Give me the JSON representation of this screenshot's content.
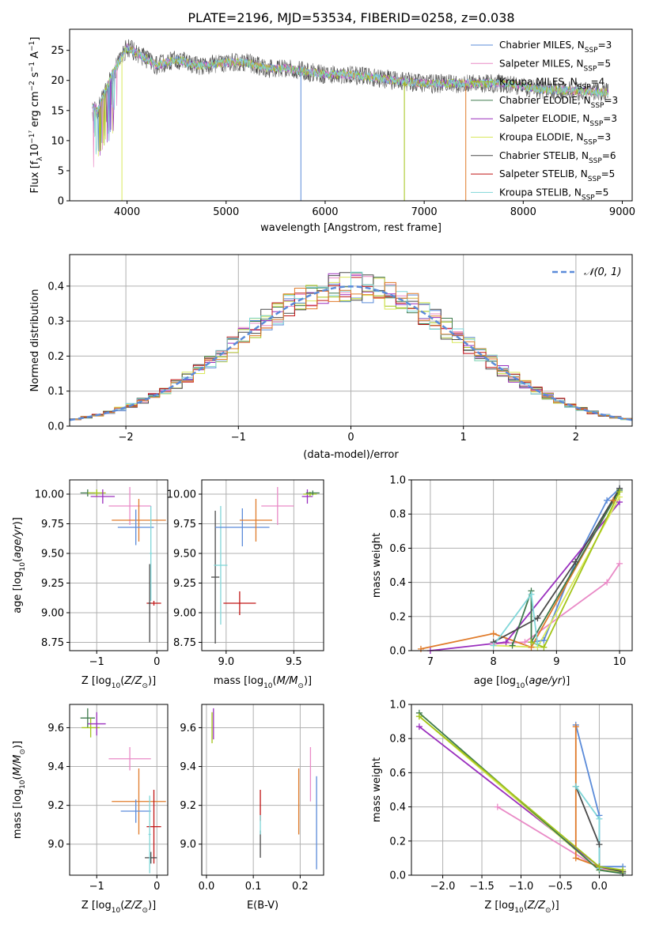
{
  "title": "PLATE=2196, MJD=53534, FIBERID=0258, z=0.038",
  "colors": {
    "Chabrier MILES": "#5b8bd9",
    "Salpeter MILES": "#e98ac6",
    "Kroupa MILES": "#a2c418",
    "Chabrier ELODIE": "#3e7a4c",
    "Salpeter ELODIE": "#9a2fbe",
    "Kroupa ELODIE": "#d9e85a",
    "Chabrier STELIB": "#4a4a4a",
    "Salpeter STELIB": "#c01515",
    "Kroupa STELIB": "#7fd6d8",
    "orange": "#e07b2a",
    "gray": "#888888"
  },
  "chart_data": [
    {
      "type": "line",
      "title": "PLATE=2196, MJD=53534, FIBERID=0258, z=0.038",
      "xlabel": "wavelength [Angstrom, rest frame]",
      "ylabel": "Flux [fλ10⁻¹⁷ erg cm⁻² s⁻¹ A⁻¹]",
      "xlim": [
        3420,
        9100
      ],
      "ylim": [
        0,
        28.5
      ],
      "xticks": [
        "4000",
        "5000",
        "6000",
        "7000",
        "8000",
        "9000"
      ],
      "yticks": [
        "0",
        "5",
        "10",
        "15",
        "20",
        "25"
      ],
      "grid": false,
      "legend_position": "upper-right",
      "spectrum_range": [
        3650,
        8860
      ],
      "continuum_points": [
        [
          3650,
          16
        ],
        [
          3700,
          15
        ],
        [
          3750,
          17
        ],
        [
          3800,
          19
        ],
        [
          3850,
          21
        ],
        [
          3900,
          22.5
        ],
        [
          3950,
          24
        ],
        [
          4000,
          25.5
        ],
        [
          4100,
          24.5
        ],
        [
          4200,
          23.5
        ],
        [
          4300,
          22.5
        ],
        [
          4400,
          23
        ],
        [
          4500,
          23.5
        ],
        [
          4600,
          23
        ],
        [
          4700,
          22.5
        ],
        [
          4800,
          22.5
        ],
        [
          5000,
          23
        ],
        [
          5200,
          23
        ],
        [
          5400,
          22
        ],
        [
          5600,
          22
        ],
        [
          5800,
          21.5
        ],
        [
          6000,
          21
        ],
        [
          6200,
          21
        ],
        [
          6500,
          20.5
        ],
        [
          6700,
          20
        ],
        [
          7000,
          19.5
        ],
        [
          7200,
          19.5
        ],
        [
          7500,
          19.5
        ],
        [
          7800,
          19.5
        ],
        [
          8000,
          19
        ],
        [
          8200,
          18.5
        ],
        [
          8500,
          18.3
        ],
        [
          8800,
          18
        ]
      ],
      "drops": [
        {
          "series": "Kroupa ELODIE",
          "x": 3948
        },
        {
          "series": "Chabrier MILES",
          "x": 5755
        },
        {
          "series": "Kroupa MILES",
          "x": 6800
        },
        {
          "series": "orange",
          "x": 7420
        }
      ],
      "series": [
        {
          "name": "Chabrier MILES, N_SSP=3",
          "label": "Chabrier MILES, N",
          "sub": "SSP",
          "suffix": "=3",
          "color_key": "Chabrier MILES"
        },
        {
          "name": "Salpeter MILES, N_SSP=5",
          "label": "Salpeter MILES, N",
          "sub": "SSP",
          "suffix": "=5",
          "color_key": "Salpeter MILES"
        },
        {
          "name": "Kroupa MILES, N_SSP=4",
          "label": "Kroupa MILES, N",
          "sub": "SSP",
          "suffix": "=4",
          "color_key": "Kroupa MILES"
        },
        {
          "name": "Chabrier ELODIE, N_SSP=3",
          "label": "Chabrier ELODIE, N",
          "sub": "SSP",
          "suffix": "=3",
          "color_key": "Chabrier ELODIE"
        },
        {
          "name": "Salpeter ELODIE, N_SSP=3",
          "label": "Salpeter ELODIE, N",
          "sub": "SSP",
          "suffix": "=3",
          "color_key": "Salpeter ELODIE"
        },
        {
          "name": "Kroupa ELODIE, N_SSP=3",
          "label": "Kroupa ELODIE, N",
          "sub": "SSP",
          "suffix": "=3",
          "color_key": "Kroupa ELODIE"
        },
        {
          "name": "Chabrier STELIB, N_SSP=6",
          "label": "Chabrier STELIB, N",
          "sub": "SSP",
          "suffix": "=6",
          "color_key": "Chabrier STELIB"
        },
        {
          "name": "Salpeter STELIB, N_SSP=5",
          "label": "Salpeter STELIB, N",
          "sub": "SSP",
          "suffix": "=5",
          "color_key": "Salpeter STELIB"
        },
        {
          "name": "Kroupa STELIB, N_SSP=5",
          "label": "Kroupa STELIB, N",
          "sub": "SSP",
          "suffix": "=5",
          "color_key": "Kroupa STELIB"
        }
      ]
    },
    {
      "type": "histogram",
      "xlabel": "(data-model)/error",
      "ylabel": "Normed distribution",
      "xlim": [
        -2.5,
        2.5
      ],
      "ylim": [
        0,
        0.49
      ],
      "xticks": [
        "-2",
        "-1",
        "0",
        "1",
        "2"
      ],
      "yticks": [
        "0.0",
        "0.1",
        "0.2",
        "0.3",
        "0.4"
      ],
      "grid": true,
      "bin_width": 0.1,
      "legend": "𝒩(0, 1)",
      "reference_curve": "normal(0,1)",
      "series_color_keys": [
        "Chabrier MILES",
        "Salpeter MILES",
        "Kroupa MILES",
        "Chabrier ELODIE",
        "Salpeter ELODIE",
        "Kroupa ELODIE",
        "Chabrier STELIB",
        "Salpeter STELIB",
        "Kroupa STELIB",
        "orange"
      ]
    },
    {
      "type": "errorbar",
      "xlabel": "Z [log₁₀(Z/Z⊙)]",
      "ylabel": "age  [log₁₀(age/yr)]",
      "xlim": [
        -1.45,
        0.18
      ],
      "ylim": [
        8.68,
        10.12
      ],
      "xticks": [
        -1,
        0
      ],
      "yticks": [
        "8.75",
        "9.00",
        "9.25",
        "9.50",
        "9.75",
        "10.00"
      ],
      "points": [
        {
          "c": "Chabrier ELODIE",
          "x": -1.15,
          "y": 10.01,
          "xe": 0.12,
          "ye": 0.03
        },
        {
          "c": "Kroupa MILES",
          "x": -1.0,
          "y": 10.01,
          "xe": 0.15,
          "ye": 0.03
        },
        {
          "c": "Salpeter ELODIE",
          "x": -0.9,
          "y": 9.98,
          "xe": 0.2,
          "ye": 0.06
        },
        {
          "c": "Salpeter MILES",
          "x": -0.45,
          "y": 9.9,
          "xe": 0.35,
          "ye": 0.16
        },
        {
          "c": "orange",
          "x": -0.3,
          "y": 9.78,
          "xe": 0.45,
          "ye": 0.18
        },
        {
          "c": "Chabrier MILES",
          "x": -0.35,
          "y": 9.72,
          "xe": 0.3,
          "ye": 0.15
        },
        {
          "c": "Salpeter STELIB",
          "x": -0.05,
          "y": 9.08,
          "xe": 0.12,
          "ye": 0.02
        },
        {
          "c": "Chabrier STELIB",
          "x": -0.12,
          "y": 9.08,
          "xe": 0.02,
          "ye": 0.33
        },
        {
          "c": "Kroupa STELIB",
          "x": -0.1,
          "y": 9.5,
          "xe": 0.02,
          "ye": 0.4
        }
      ]
    },
    {
      "type": "errorbar",
      "xlabel": "mass [log₁₀(M/M⊙)]",
      "xlim": [
        8.82,
        9.72
      ],
      "ylim": [
        8.68,
        10.12
      ],
      "xticks": [
        "9.0",
        "9.5"
      ],
      "yticks": [
        "8.75",
        "9.00",
        "9.25",
        "9.50",
        "9.75",
        "10.00"
      ],
      "points": [
        {
          "c": "Chabrier STELIB",
          "x": 8.92,
          "y": 9.3,
          "xe": 0.03,
          "ye": 0.56
        },
        {
          "c": "Kroupa STELIB",
          "x": 8.96,
          "y": 9.4,
          "xe": 0.05,
          "ye": 0.5
        },
        {
          "c": "Chabrier MILES",
          "x": 9.12,
          "y": 9.72,
          "xe": 0.2,
          "ye": 0.16
        },
        {
          "c": "Salpeter STELIB",
          "x": 9.1,
          "y": 9.08,
          "xe": 0.12,
          "ye": 0.1
        },
        {
          "c": "orange",
          "x": 9.22,
          "y": 9.78,
          "xe": 0.12,
          "ye": 0.18
        },
        {
          "c": "Salpeter MILES",
          "x": 9.38,
          "y": 9.9,
          "xe": 0.12,
          "ye": 0.16
        },
        {
          "c": "Salpeter ELODIE",
          "x": 9.6,
          "y": 9.98,
          "xe": 0.04,
          "ye": 0.06
        },
        {
          "c": "Kroupa MILES",
          "x": 9.62,
          "y": 10.0,
          "xe": 0.05,
          "ye": 0.02
        },
        {
          "c": "Chabrier ELODIE",
          "x": 9.64,
          "y": 10.01,
          "xe": 0.05,
          "ye": 0.02
        }
      ]
    },
    {
      "type": "line",
      "xlabel": "age  [log₁₀(age/yr)]",
      "ylabel": "mass weight",
      "xlim": [
        6.7,
        10.2
      ],
      "ylim": [
        0,
        1
      ],
      "xticks": [
        7,
        8,
        9,
        10
      ],
      "yticks": [
        "0.0",
        "0.2",
        "0.4",
        "0.6",
        "0.8",
        "1.0"
      ],
      "grid": true,
      "series": [
        {
          "c": "Chabrier MILES",
          "points": [
            [
              8.6,
              0.05
            ],
            [
              8.8,
              0.06
            ],
            [
              9.3,
              0.52
            ],
            [
              9.8,
              0.88
            ],
            [
              10.0,
              0.95
            ]
          ]
        },
        {
          "c": "Salpeter MILES",
          "points": [
            [
              8.0,
              0.04
            ],
            [
              8.5,
              0.05
            ],
            [
              9.8,
              0.4
            ],
            [
              10.0,
              0.51
            ]
          ]
        },
        {
          "c": "orange",
          "points": [
            [
              6.85,
              0.01
            ],
            [
              8.0,
              0.1
            ],
            [
              8.6,
              0.02
            ],
            [
              9.9,
              0.88
            ]
          ]
        },
        {
          "c": "Salpeter ELODIE",
          "points": [
            [
              7.0,
              0.0
            ],
            [
              8.2,
              0.05
            ],
            [
              10.0,
              0.87
            ]
          ]
        },
        {
          "c": "Kroupa ELODIE",
          "points": [
            [
              8.0,
              0.03
            ],
            [
              8.7,
              0.02
            ],
            [
              10.0,
              0.9
            ]
          ]
        },
        {
          "c": "Chabrier ELODIE",
          "points": [
            [
              8.3,
              0.03
            ],
            [
              8.6,
              0.35
            ],
            [
              8.6,
              0.05
            ],
            [
              10.0,
              0.94
            ]
          ]
        },
        {
          "c": "Chabrier STELIB",
          "points": [
            [
              8.0,
              0.05
            ],
            [
              8.7,
              0.19
            ],
            [
              9.3,
              0.52
            ],
            [
              10.0,
              0.95
            ]
          ]
        },
        {
          "c": "Kroupa STELIB",
          "points": [
            [
              8.0,
              0.03
            ],
            [
              8.6,
              0.33
            ],
            [
              8.7,
              0.04
            ]
          ]
        },
        {
          "c": "Kroupa MILES",
          "points": [
            [
              8.6,
              0.05
            ],
            [
              8.8,
              0.02
            ],
            [
              10.0,
              0.93
            ]
          ]
        }
      ]
    },
    {
      "type": "errorbar",
      "xlabel": "Z [log₁₀(Z/Z⊙)]",
      "ylabel": "mass [log₁₀(M/M⊙)]",
      "xlim": [
        -1.45,
        0.18
      ],
      "ylim": [
        8.84,
        9.72
      ],
      "xticks": [
        -1,
        0
      ],
      "yticks": [
        "9.0",
        "9.2",
        "9.4",
        "9.6"
      ],
      "points": [
        {
          "c": "Chabrier ELODIE",
          "x": -1.15,
          "y": 9.65,
          "xe": 0.12,
          "ye": 0.05
        },
        {
          "c": "Kroupa MILES",
          "x": -1.1,
          "y": 9.6,
          "xe": 0.15,
          "ye": 0.05
        },
        {
          "c": "Salpeter ELODIE",
          "x": -1.0,
          "y": 9.62,
          "xe": 0.15,
          "ye": 0.06
        },
        {
          "c": "Salpeter MILES",
          "x": -0.45,
          "y": 9.44,
          "xe": 0.35,
          "ye": 0.06
        },
        {
          "c": "orange",
          "x": -0.3,
          "y": 9.22,
          "xe": 0.45,
          "ye": 0.17
        },
        {
          "c": "Chabrier MILES",
          "x": -0.35,
          "y": 9.17,
          "xe": 0.25,
          "ye": 0.06
        },
        {
          "c": "Salpeter STELIB",
          "x": -0.05,
          "y": 9.09,
          "xe": 0.12,
          "ye": 0.19
        },
        {
          "c": "Chabrier STELIB",
          "x": -0.1,
          "y": 8.93,
          "xe": 0.1,
          "ye": 0.03
        },
        {
          "c": "Kroupa STELIB",
          "x": -0.12,
          "y": 9.05,
          "xe": 0.02,
          "ye": 0.2
        }
      ]
    },
    {
      "type": "errorbar",
      "xlabel": "E(B-V)",
      "xlim": [
        -0.01,
        0.25
      ],
      "ylim": [
        8.84,
        9.72
      ],
      "xticks": [
        "0.0",
        "0.1",
        "0.2"
      ],
      "yticks": [
        "9.0",
        "9.2",
        "9.4",
        "9.6"
      ],
      "points": [
        {
          "c": "Kroupa MILES",
          "x": 0.012,
          "y": 9.6,
          "xe": 0,
          "ye": 0.08
        },
        {
          "c": "Salpeter ELODIE",
          "x": 0.015,
          "y": 9.62,
          "xe": 0,
          "ye": 0.08
        },
        {
          "c": "Chabrier STELIB",
          "x": 0.115,
          "y": 9.0,
          "xe": 0,
          "ye": 0.07
        },
        {
          "c": "Salpeter STELIB",
          "x": 0.115,
          "y": 9.2,
          "xe": 0,
          "ye": 0.08
        },
        {
          "c": "Kroupa STELIB",
          "x": 0.115,
          "y": 9.1,
          "xe": 0,
          "ye": 0.05
        },
        {
          "c": "orange",
          "x": 0.197,
          "y": 9.22,
          "xe": 0,
          "ye": 0.17
        },
        {
          "c": "Salpeter MILES",
          "x": 0.222,
          "y": 9.36,
          "xe": 0,
          "ye": 0.14
        },
        {
          "c": "Chabrier MILES",
          "x": 0.235,
          "y": 9.11,
          "xe": 0,
          "ye": 0.24
        }
      ]
    },
    {
      "type": "line",
      "xlabel": "Z [log₁₀(Z/Z⊙)]",
      "ylabel": "mass weight",
      "xlim": [
        -2.4,
        0.42
      ],
      "ylim": [
        0,
        1
      ],
      "xticks": [
        "−2.0",
        "−1.5",
        "−1.0",
        "−0.5",
        "0.0"
      ],
      "yticks": [
        "0.0",
        "0.2",
        "0.4",
        "0.6",
        "0.8",
        "1.0"
      ],
      "grid": true,
      "series": [
        {
          "c": "Chabrier MILES",
          "points": [
            [
              -0.3,
              0.88
            ],
            [
              0.0,
              0.35
            ],
            [
              0.0,
              0.05
            ],
            [
              0.3,
              0.05
            ]
          ]
        },
        {
          "c": "Salpeter MILES",
          "points": [
            [
              -1.3,
              0.4
            ],
            [
              0.0,
              0.04
            ],
            [
              0.3,
              0.02
            ]
          ]
        },
        {
          "c": "orange",
          "points": [
            [
              -0.3,
              0.87
            ],
            [
              -0.3,
              0.1
            ],
            [
              0.0,
              0.05
            ],
            [
              0.3,
              0.02
            ]
          ]
        },
        {
          "c": "Salpeter ELODIE",
          "points": [
            [
              -2.3,
              0.87
            ],
            [
              0.0,
              0.05
            ],
            [
              0.3,
              0.02
            ]
          ]
        },
        {
          "c": "Kroupa ELODIE",
          "points": [
            [
              -2.3,
              0.93
            ],
            [
              0.0,
              0.03
            ],
            [
              0.3,
              0.02
            ]
          ]
        },
        {
          "c": "Chabrier ELODIE",
          "points": [
            [
              -2.3,
              0.95
            ],
            [
              0.0,
              0.03
            ],
            [
              0.3,
              0.01
            ]
          ]
        },
        {
          "c": "Chabrier STELIB",
          "points": [
            [
              -0.3,
              0.52
            ],
            [
              0.0,
              0.18
            ],
            [
              0.0,
              0.05
            ],
            [
              0.3,
              0.02
            ]
          ]
        },
        {
          "c": "Kroupa STELIB",
          "points": [
            [
              -0.3,
              0.52
            ],
            [
              0.0,
              0.33
            ],
            [
              0.0,
              0.04
            ]
          ]
        },
        {
          "c": "Kroupa MILES",
          "points": [
            [
              -2.3,
              0.93
            ],
            [
              0.0,
              0.05
            ],
            [
              0.3,
              0.03
            ]
          ]
        }
      ]
    }
  ]
}
